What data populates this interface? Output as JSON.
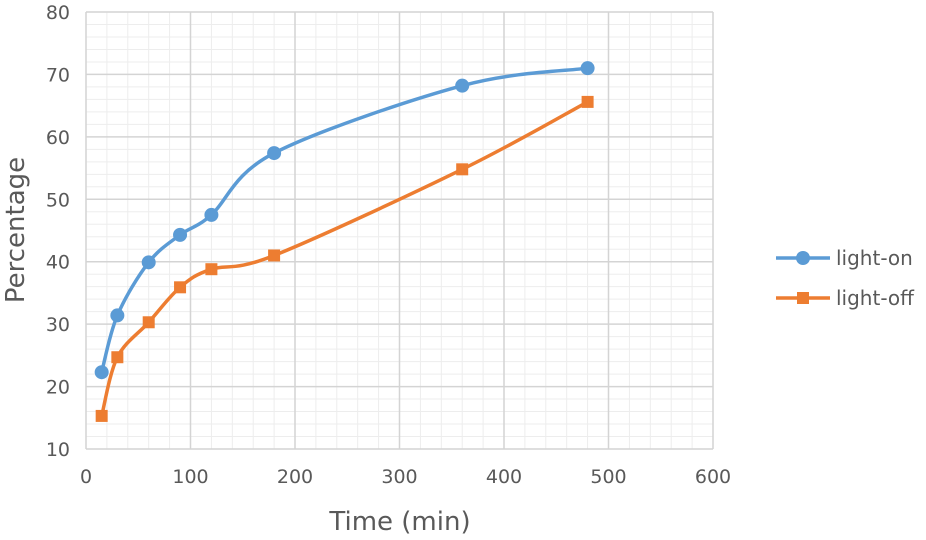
{
  "chart_data": {
    "type": "line",
    "title": "",
    "xlabel": "Time (min)",
    "ylabel": "Percentage",
    "xlim": [
      0,
      600
    ],
    "ylim": [
      10,
      80
    ],
    "xticks": [
      0,
      100,
      200,
      300,
      400,
      500,
      600
    ],
    "yticks": [
      10,
      20,
      30,
      40,
      50,
      60,
      70,
      80
    ],
    "grid": true,
    "minor_grid": true,
    "smooth": true,
    "legend": "right",
    "series": [
      {
        "name": "light-on",
        "color": "#5B9BD5",
        "marker": "circle",
        "x": [
          15,
          30,
          60,
          90,
          120,
          180,
          360,
          480
        ],
        "y": [
          22.3,
          31.4,
          39.9,
          44.3,
          47.5,
          57.4,
          68.2,
          71.0
        ]
      },
      {
        "name": "light-off",
        "color": "#ED7D31",
        "marker": "square",
        "x": [
          15,
          30,
          60,
          90,
          120,
          180,
          360,
          480
        ],
        "y": [
          15.3,
          24.7,
          30.3,
          35.9,
          38.8,
          41.0,
          54.8,
          65.6
        ]
      }
    ]
  }
}
